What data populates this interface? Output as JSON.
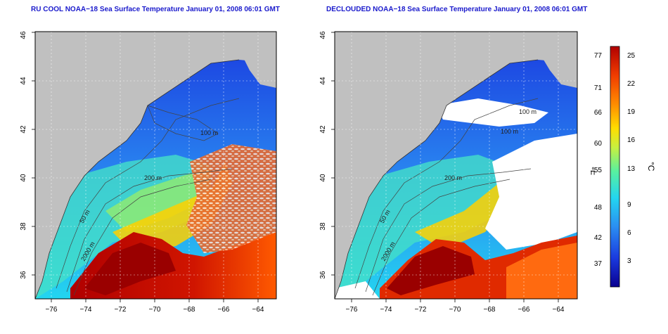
{
  "left_panel": {
    "title": "RU COOL NOAA−18 Sea Surface Temperature January 01, 2008 06:01 GMT",
    "x_ticks": [
      "−76",
      "−74",
      "−72",
      "−70",
      "−68",
      "−66",
      "−64"
    ],
    "y_ticks": [
      "36",
      "38",
      "40",
      "42",
      "44",
      "46"
    ],
    "contour_labels": [
      "100 m",
      "200 m",
      "50 m",
      "2000 m"
    ]
  },
  "right_panel": {
    "title": "DECLOUDED NOAA−18 Sea Surface Temperature January 01, 2008 06:01 GMT",
    "x_ticks": [
      "−76",
      "−74",
      "−72",
      "−70",
      "−68",
      "−66",
      "−64"
    ],
    "y_ticks": [
      "36",
      "38",
      "40",
      "42",
      "44",
      "46"
    ],
    "contour_labels": [
      "100 m",
      "100 m",
      "200 m",
      "50 m",
      "2000 m"
    ]
  },
  "colorbar": {
    "fahrenheit_label": "°F",
    "celsius_label": "°C",
    "fahrenheit_ticks": [
      "77",
      "71",
      "66",
      "60",
      "55",
      "48",
      "42",
      "37"
    ],
    "celsius_ticks": [
      "25",
      "22",
      "19",
      "16",
      "13",
      "9",
      "6",
      "3"
    ],
    "colors": [
      "#0a0090",
      "#1a3adf",
      "#2b8ef2",
      "#23d6f0",
      "#58f0a0",
      "#c8f040",
      "#ffdd00",
      "#ff8c00",
      "#f03c00",
      "#b00000"
    ]
  },
  "map": {
    "land_color": "#c0c0c0",
    "lon_range": [
      -77,
      -63
    ],
    "lat_range": [
      35,
      46
    ]
  }
}
